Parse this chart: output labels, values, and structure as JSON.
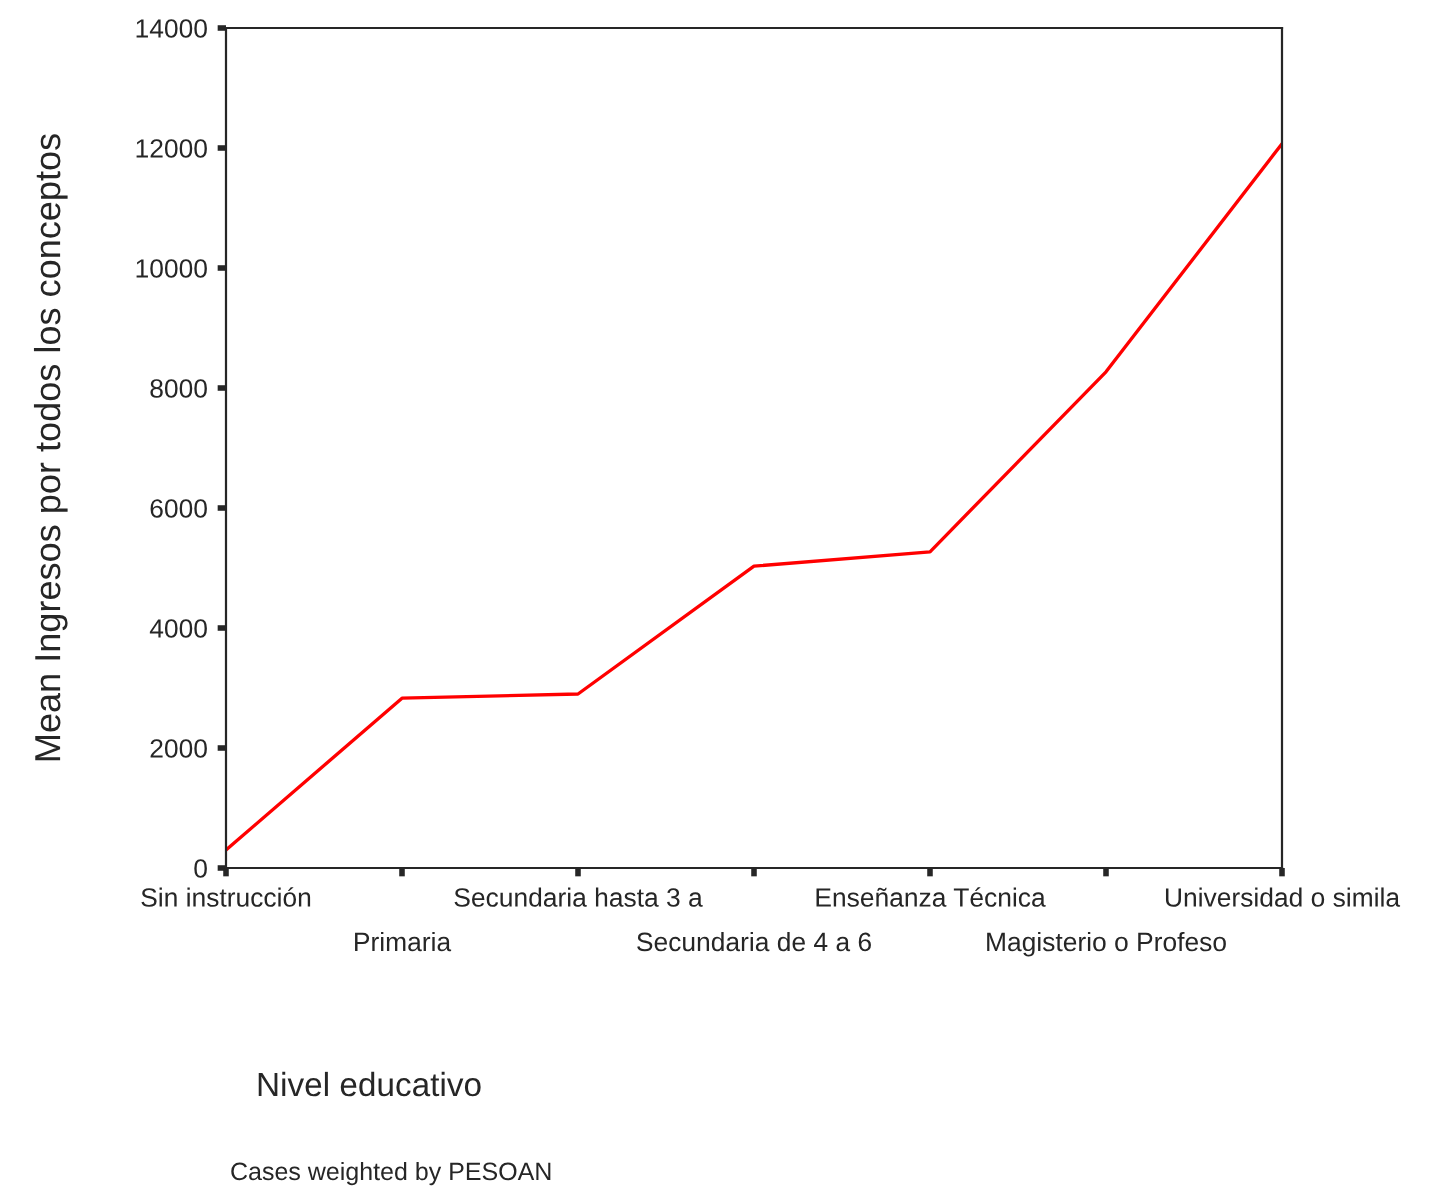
{
  "chart_data": {
    "type": "line",
    "ylabel": "Mean Ingresos por todos los conceptos",
    "categories": [
      "Sin instrucción",
      "Primaria",
      "Secundaria hasta 3 a",
      "Secundaria de 4 a 6",
      "Enseñanza Técnica",
      "Magisterio o Profeso",
      "Universidad o simila"
    ],
    "series": [
      {
        "color": "#ff0000",
        "values": [
          300,
          2830,
          2900,
          5030,
          5270,
          8270,
          12070
        ]
      }
    ],
    "ylim": [
      0,
      14000
    ],
    "yticks": [
      0,
      2000,
      4000,
      6000,
      8000,
      10000,
      12000,
      14000
    ],
    "grid": false,
    "marker": "none",
    "line_style": "solid",
    "annotations": [
      "Nivel educativo",
      "Cases weighted by PESOAN"
    ]
  }
}
